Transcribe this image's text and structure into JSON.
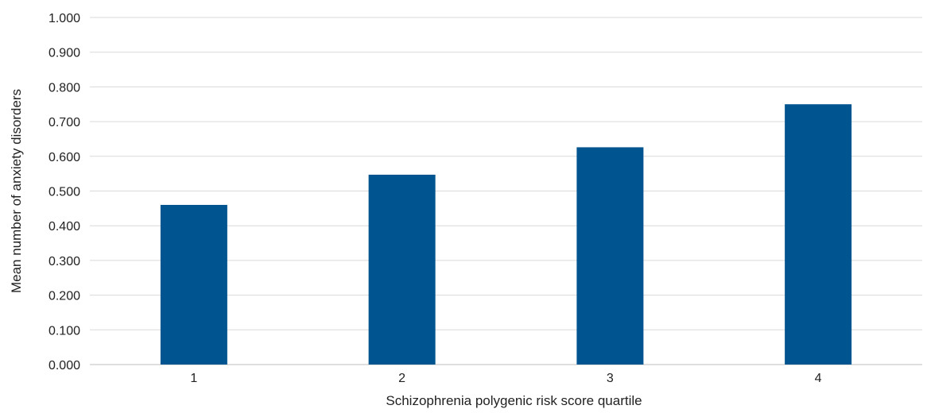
{
  "chart_data": {
    "type": "bar",
    "categories": [
      "1",
      "2",
      "3",
      "4"
    ],
    "values": [
      0.46,
      0.547,
      0.626,
      0.75
    ],
    "xlabel": "Schizophrenia polygenic risk score quartile",
    "ylabel": "Mean number of anxiety disorders",
    "ylim": [
      0,
      1
    ],
    "yticks": [
      "0.000",
      "0.100",
      "0.200",
      "0.300",
      "0.400",
      "0.500",
      "0.600",
      "0.700",
      "0.800",
      "0.900",
      "1.000"
    ],
    "grid": true,
    "bar_color": "#00548f",
    "gridline_color": "#d9d9d9"
  }
}
